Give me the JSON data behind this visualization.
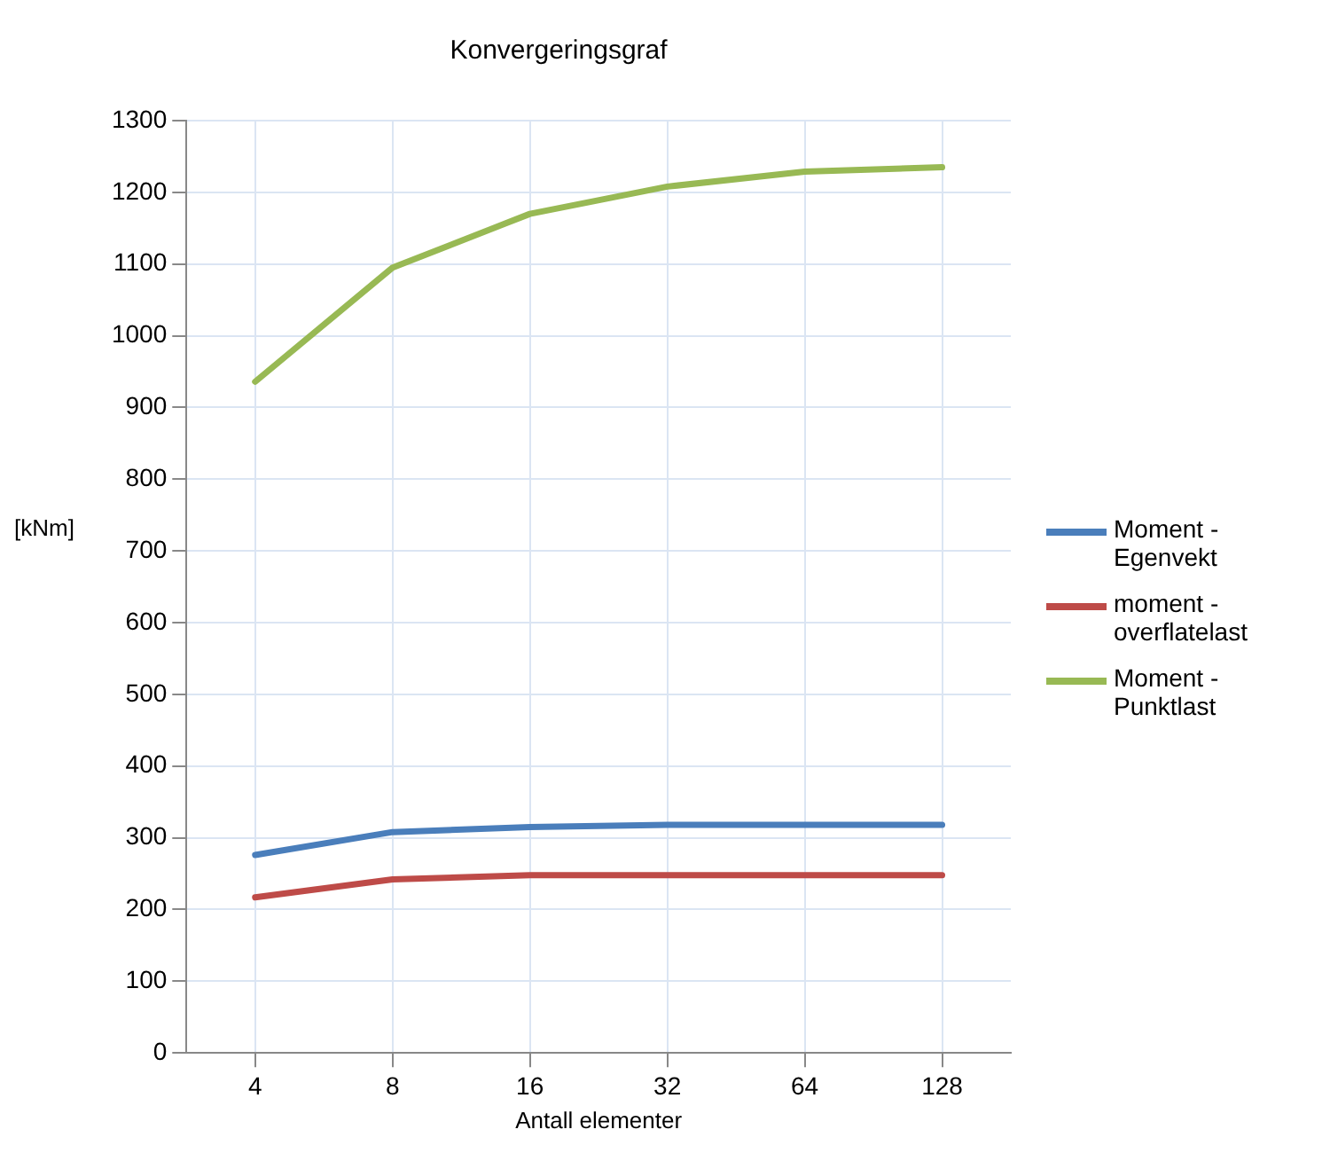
{
  "chart_data": {
    "type": "line",
    "title": "Konvergeringsgraf",
    "xlabel": "Antall elementer",
    "ylabel": "[kNm]",
    "categories": [
      "4",
      "8",
      "16",
      "32",
      "64",
      "128"
    ],
    "series": [
      {
        "name": "Moment - Egenvekt",
        "color": "#4a7ebb",
        "values": [
          276,
          308,
          315,
          318,
          318,
          318
        ]
      },
      {
        "name": "moment - overflatelast",
        "color": "#be4b48",
        "values": [
          217,
          242,
          248,
          248,
          248,
          248
        ]
      },
      {
        "name": "Moment - Punktlast",
        "color": "#98b954",
        "values": [
          936,
          1095,
          1170,
          1208,
          1229,
          1235
        ]
      }
    ],
    "ylim": [
      0,
      1300
    ],
    "yticks": [
      0,
      100,
      200,
      300,
      400,
      500,
      600,
      700,
      800,
      900,
      1000,
      1100,
      1200,
      1300
    ],
    "grid": true,
    "legend": "right",
    "marker": "none",
    "line_style": "solid"
  }
}
